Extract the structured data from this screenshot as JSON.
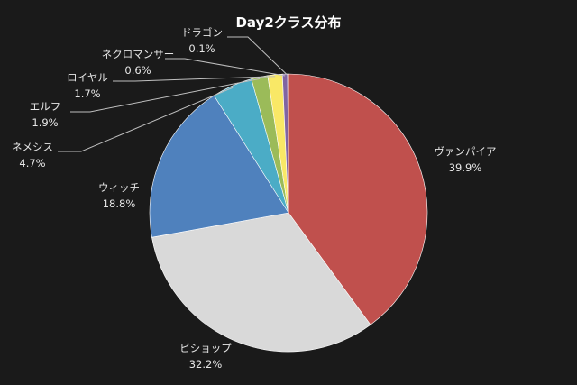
{
  "chart_data": {
    "type": "pie",
    "title": "Day2クラス分布",
    "start": "12 o'clock",
    "direction": "clockwise",
    "slices": [
      {
        "label": "ヴァンパイア",
        "value": 39.9,
        "value_text": "39.9%",
        "color": "#c0504d"
      },
      {
        "label": "ビショップ",
        "value": 32.2,
        "value_text": "32.2%",
        "color": "#d9d9d9"
      },
      {
        "label": "ウィッチ",
        "value": 18.8,
        "value_text": "18.8%",
        "color": "#4f81bd"
      },
      {
        "label": "ネメシス",
        "value": 4.7,
        "value_text": "4.7%",
        "color": "#4bacc6"
      },
      {
        "label": "エルフ",
        "value": 1.9,
        "value_text": "1.9%",
        "color": "#9bbb59"
      },
      {
        "label": "ロイヤル",
        "value": 1.7,
        "value_text": "1.7%",
        "color": "#f9e866"
      },
      {
        "label": "ネクロマンサー",
        "value": 0.6,
        "value_text": "0.6%",
        "color": "#8064a2"
      },
      {
        "label": "ドラゴン",
        "value": 0.1,
        "value_text": "0.1%",
        "color": "#f79646"
      }
    ]
  }
}
